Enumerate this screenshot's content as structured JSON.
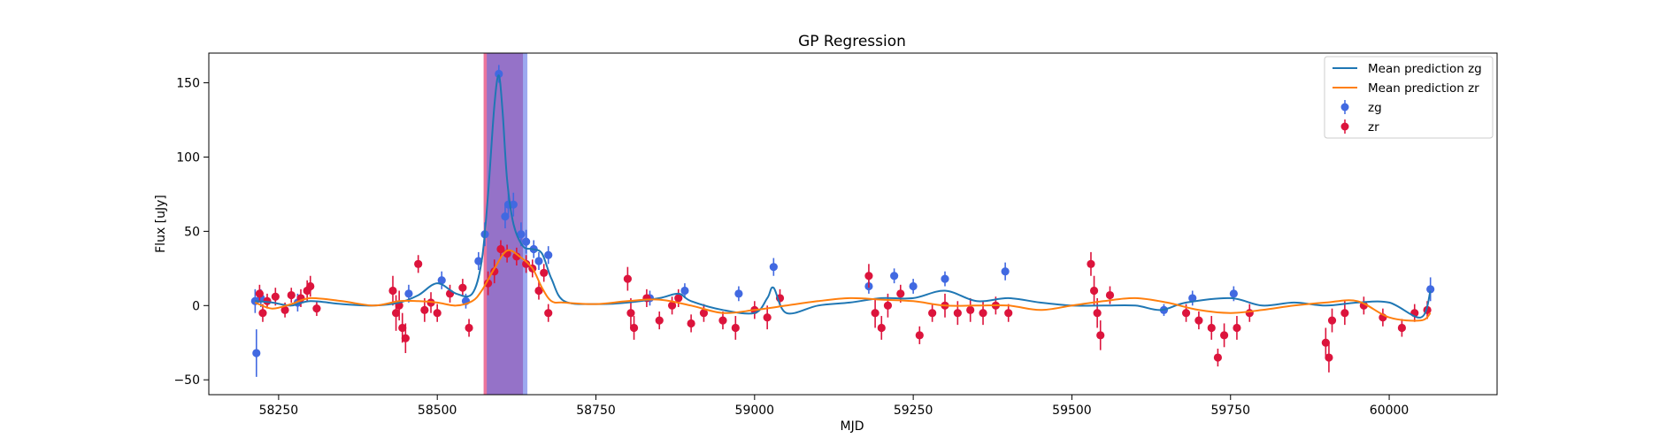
{
  "chart_data": {
    "type": "scatter",
    "title": "GP Regression",
    "xlabel": "MJD",
    "ylabel": "Flux [uJy]",
    "xlim": [
      58140,
      60170
    ],
    "ylim": [
      -60,
      170
    ],
    "xticks": [
      58250,
      58500,
      58750,
      59000,
      59250,
      59500,
      59750,
      60000
    ],
    "xtick_labels": [
      "58250",
      "58500",
      "58750",
      "59000",
      "59250",
      "59500",
      "59750",
      "60000"
    ],
    "yticks": [
      -50,
      0,
      50,
      100,
      150
    ],
    "ytick_labels": [
      "−50",
      "0",
      "50",
      "100",
      "150"
    ],
    "shaded_regions": [
      {
        "name": "zr",
        "color": "#e0195a",
        "x_start": 58573,
        "x_end": 58635
      },
      {
        "name": "zg",
        "color": "#5b6fe6",
        "x_start": 58578,
        "x_end": 58642
      }
    ],
    "legend": {
      "position": "top-right",
      "entries": [
        {
          "label": "Mean prediction zg",
          "kind": "line",
          "color": "#1f77b4"
        },
        {
          "label": "Mean prediction zr",
          "kind": "line",
          "color": "#ff7f0e"
        },
        {
          "label": "zg",
          "kind": "errorbar",
          "color": "#4169e1"
        },
        {
          "label": "zr",
          "kind": "errorbar",
          "color": "#dc143c"
        }
      ]
    },
    "series": [
      {
        "name": "Mean prediction zg",
        "kind": "line",
        "color": "#1f77b4",
        "x": [
          58213,
          58240,
          58270,
          58300,
          58350,
          58400,
          58440,
          58470,
          58500,
          58530,
          58555,
          58570,
          58580,
          58590,
          58597,
          58603,
          58610,
          58620,
          58635,
          58650,
          58665,
          58680,
          58700,
          58750,
          58800,
          58850,
          58880,
          58900,
          58950,
          59000,
          59020,
          59030,
          59050,
          59100,
          59150,
          59200,
          59250,
          59300,
          59350,
          59400,
          59450,
          59500,
          59550,
          59600,
          59640,
          59680,
          59750,
          59800,
          59850,
          59900,
          59950,
          60000,
          60050,
          60065
        ],
        "y": [
          3,
          2,
          0,
          3,
          1,
          0,
          2,
          7,
          15,
          8,
          8,
          30,
          75,
          135,
          155,
          130,
          85,
          55,
          40,
          38,
          35,
          18,
          3,
          1,
          2,
          5,
          8,
          3,
          -3,
          -5,
          5,
          12,
          -5,
          0,
          2,
          5,
          5,
          10,
          3,
          5,
          2,
          0,
          0,
          0,
          -3,
          2,
          5,
          0,
          2,
          0,
          2,
          2,
          -8,
          10
        ]
      },
      {
        "name": "Mean prediction zr",
        "kind": "line",
        "color": "#ff7f0e",
        "x": [
          58213,
          58240,
          58270,
          58300,
          58350,
          58400,
          58440,
          58470,
          58500,
          58530,
          58555,
          58570,
          58590,
          58610,
          58630,
          58650,
          58665,
          58680,
          58700,
          58750,
          58800,
          58850,
          58900,
          58950,
          59000,
          59050,
          59100,
          59150,
          59200,
          59250,
          59300,
          59350,
          59400,
          59450,
          59500,
          59550,
          59600,
          59650,
          59700,
          59750,
          59800,
          59850,
          59900,
          59950,
          60000,
          60050,
          60065
        ],
        "y": [
          2,
          -2,
          1,
          5,
          3,
          0,
          3,
          3,
          2,
          0,
          3,
          10,
          25,
          37,
          33,
          25,
          12,
          3,
          2,
          1,
          3,
          4,
          0,
          -5,
          -3,
          0,
          3,
          5,
          4,
          3,
          0,
          0,
          0,
          -3,
          0,
          3,
          5,
          2,
          -3,
          -5,
          -3,
          0,
          2,
          3,
          -8,
          -10,
          -5
        ]
      },
      {
        "name": "zg",
        "kind": "errorbar",
        "color": "#4169e1",
        "points": [
          [
            58213,
            3,
            8
          ],
          [
            58215,
            -32,
            16
          ],
          [
            58222,
            5,
            6
          ],
          [
            58280,
            2,
            6
          ],
          [
            58455,
            8,
            6
          ],
          [
            58507,
            17,
            6
          ],
          [
            58545,
            3,
            5
          ],
          [
            58565,
            30,
            6
          ],
          [
            58575,
            48,
            8
          ],
          [
            58597,
            156,
            6
          ],
          [
            58607,
            60,
            8
          ],
          [
            58612,
            68,
            8
          ],
          [
            58620,
            68,
            8
          ],
          [
            58632,
            48,
            8
          ],
          [
            58640,
            43,
            8
          ],
          [
            58652,
            38,
            6
          ],
          [
            58660,
            30,
            6
          ],
          [
            58675,
            34,
            6
          ],
          [
            58835,
            5,
            5
          ],
          [
            58890,
            10,
            5
          ],
          [
            58975,
            8,
            5
          ],
          [
            59030,
            26,
            6
          ],
          [
            59180,
            13,
            5
          ],
          [
            59220,
            20,
            5
          ],
          [
            59250,
            13,
            5
          ],
          [
            59300,
            18,
            5
          ],
          [
            59395,
            23,
            6
          ],
          [
            59645,
            -3,
            4
          ],
          [
            59690,
            5,
            5
          ],
          [
            59755,
            8,
            5
          ],
          [
            60065,
            11,
            8
          ]
        ]
      },
      {
        "name": "zr",
        "kind": "errorbar",
        "color": "#dc143c",
        "points": [
          [
            58220,
            8,
            6
          ],
          [
            58225,
            -5,
            6
          ],
          [
            58232,
            3,
            5
          ],
          [
            58245,
            6,
            6
          ],
          [
            58260,
            -3,
            5
          ],
          [
            58270,
            7,
            5
          ],
          [
            58285,
            5,
            6
          ],
          [
            58295,
            10,
            7
          ],
          [
            58300,
            13,
            7
          ],
          [
            58310,
            -2,
            5
          ],
          [
            58430,
            10,
            10
          ],
          [
            58435,
            -5,
            12
          ],
          [
            58440,
            0,
            10
          ],
          [
            58445,
            -15,
            10
          ],
          [
            58450,
            -22,
            10
          ],
          [
            58470,
            28,
            6
          ],
          [
            58480,
            -3,
            8
          ],
          [
            58490,
            2,
            7
          ],
          [
            58500,
            -5,
            6
          ],
          [
            58520,
            8,
            6
          ],
          [
            58540,
            12,
            6
          ],
          [
            58550,
            -15,
            6
          ],
          [
            58580,
            15,
            8
          ],
          [
            58590,
            23,
            8
          ],
          [
            58600,
            38,
            6
          ],
          [
            58610,
            35,
            6
          ],
          [
            58625,
            33,
            6
          ],
          [
            58640,
            28,
            6
          ],
          [
            58650,
            25,
            6
          ],
          [
            58660,
            10,
            6
          ],
          [
            58668,
            22,
            6
          ],
          [
            58675,
            -5,
            6
          ],
          [
            58800,
            18,
            8
          ],
          [
            58805,
            -5,
            10
          ],
          [
            58810,
            -15,
            8
          ],
          [
            58830,
            5,
            6
          ],
          [
            58850,
            -10,
            6
          ],
          [
            58870,
            0,
            6
          ],
          [
            58880,
            5,
            6
          ],
          [
            58900,
            -12,
            6
          ],
          [
            58920,
            -5,
            6
          ],
          [
            58950,
            -10,
            6
          ],
          [
            58970,
            -15,
            8
          ],
          [
            59000,
            -3,
            6
          ],
          [
            59020,
            -8,
            8
          ],
          [
            59040,
            5,
            6
          ],
          [
            59180,
            20,
            8
          ],
          [
            59190,
            -5,
            10
          ],
          [
            59200,
            -15,
            8
          ],
          [
            59210,
            0,
            8
          ],
          [
            59230,
            8,
            6
          ],
          [
            59260,
            -20,
            6
          ],
          [
            59280,
            -5,
            6
          ],
          [
            59300,
            0,
            8
          ],
          [
            59320,
            -5,
            8
          ],
          [
            59340,
            -3,
            8
          ],
          [
            59360,
            -5,
            8
          ],
          [
            59380,
            0,
            6
          ],
          [
            59400,
            -5,
            6
          ],
          [
            59530,
            28,
            8
          ],
          [
            59535,
            10,
            10
          ],
          [
            59540,
            -5,
            10
          ],
          [
            59545,
            -20,
            10
          ],
          [
            59560,
            7,
            6
          ],
          [
            59680,
            -5,
            6
          ],
          [
            59700,
            -10,
            6
          ],
          [
            59720,
            -15,
            8
          ],
          [
            59730,
            -35,
            6
          ],
          [
            59740,
            -20,
            8
          ],
          [
            59760,
            -15,
            8
          ],
          [
            59780,
            -5,
            6
          ],
          [
            59900,
            -25,
            10
          ],
          [
            59905,
            -35,
            10
          ],
          [
            59910,
            -10,
            8
          ],
          [
            59930,
            -5,
            8
          ],
          [
            59960,
            0,
            6
          ],
          [
            59990,
            -8,
            6
          ],
          [
            60020,
            -15,
            6
          ],
          [
            60040,
            -5,
            6
          ],
          [
            60060,
            -3,
            6
          ]
        ]
      }
    ]
  }
}
